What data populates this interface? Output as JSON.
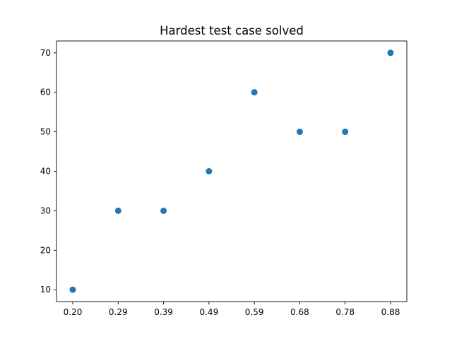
{
  "chart_data": {
    "type": "scatter",
    "title": "Hardest test case solved",
    "xlabel": "",
    "ylabel": "",
    "x": [
      0.2,
      0.29,
      0.39,
      0.49,
      0.59,
      0.68,
      0.78,
      0.88
    ],
    "x_tick_labels": [
      "0.20",
      "0.29",
      "0.39",
      "0.49",
      "0.59",
      "0.68",
      "0.78",
      "0.88"
    ],
    "y": [
      10,
      30,
      30,
      40,
      60,
      50,
      50,
      70
    ],
    "y_ticks": [
      10,
      20,
      30,
      40,
      50,
      60,
      70
    ],
    "y_tick_labels": [
      "10",
      "20",
      "30",
      "40",
      "50",
      "60",
      "70"
    ],
    "ylim": [
      7,
      73
    ],
    "grid": false,
    "marker_color": "#1f77b4"
  }
}
